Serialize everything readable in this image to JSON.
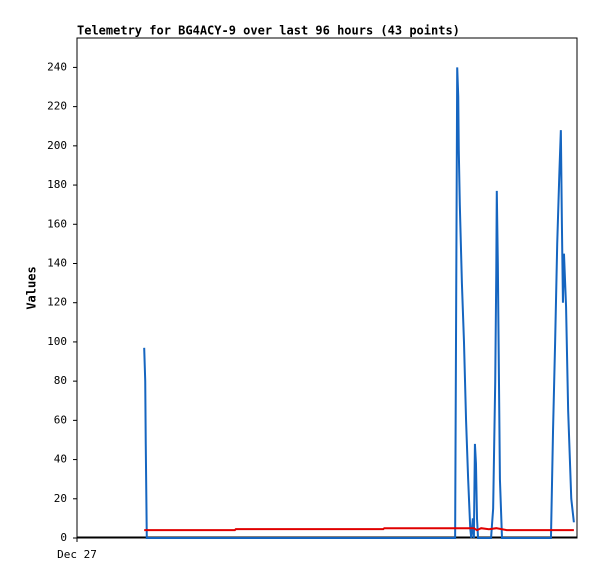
{
  "chart_data": {
    "type": "line",
    "title": "Telemetry for BG4ACY-9 over last 96 hours (43 points)",
    "y_label": "Values",
    "xlim": [
      0,
      96
    ],
    "xticks": [
      {
        "value": 0,
        "label": "Dec 27"
      }
    ],
    "ylim": [
      0,
      255
    ],
    "yticks": [
      0,
      20,
      40,
      60,
      80,
      100,
      120,
      140,
      160,
      180,
      200,
      220,
      240
    ],
    "series": [
      {
        "color": "#1565c0",
        "x": [
          12.9,
          13.1,
          13.2,
          13.4,
          72.6,
          72.8,
          73.0,
          73.2,
          73.3,
          73.5,
          73.9,
          74.3,
          74.7,
          75.1,
          75.5,
          75.7,
          76.0,
          76.2,
          76.4,
          76.6,
          76.8,
          77.0,
          79.5,
          79.9,
          80.3,
          80.5,
          80.6,
          80.8,
          81.2,
          81.6,
          91.0,
          91.4,
          91.8,
          92.2,
          92.6,
          92.9,
          93.1,
          93.3,
          93.5,
          93.9,
          94.3,
          94.9,
          95.4
        ],
        "values": [
          97,
          80,
          48,
          0,
          0,
          120,
          240,
          225,
          198,
          170,
          130,
          100,
          60,
          30,
          5,
          0,
          10,
          0,
          48,
          38,
          10,
          0,
          0,
          15,
          80,
          135,
          177,
          140,
          30,
          0,
          0,
          55,
          100,
          150,
          185,
          208,
          160,
          120,
          145,
          118,
          65,
          20,
          8
        ]
      },
      {
        "color": "#e00000",
        "x": [
          12.9,
          30.3,
          30.5,
          58.8,
          59.0,
          76.2,
          76.8,
          77.6,
          79.1,
          80.5,
          82.5,
          95.4
        ],
        "values": [
          4,
          4,
          4.5,
          4.5,
          5,
          5,
          4,
          5,
          4.5,
          5,
          4,
          4
        ]
      }
    ]
  }
}
